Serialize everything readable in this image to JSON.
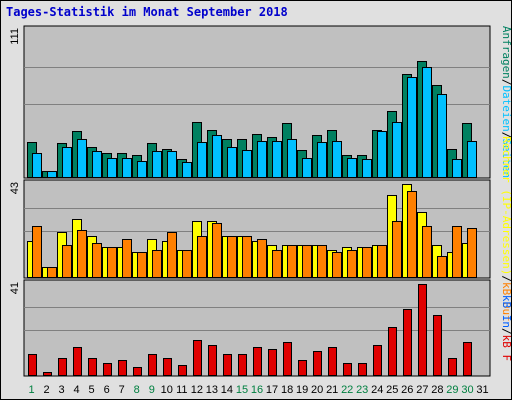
{
  "chart_data": {
    "type": "bar",
    "title": "Tages-Statistik im Monat September 2018",
    "categories": [
      "1",
      "2",
      "3",
      "4",
      "5",
      "6",
      "7",
      "8",
      "9",
      "10",
      "11",
      "12",
      "13",
      "14",
      "15",
      "16",
      "17",
      "18",
      "19",
      "20",
      "21",
      "22",
      "23",
      "24",
      "25",
      "26",
      "27",
      "28",
      "29",
      "30",
      "31"
    ],
    "weekend_days": [
      "1",
      "8",
      "9",
      "15",
      "16",
      "22",
      "23",
      "29",
      "30"
    ],
    "colors": {
      "title": "#0000cc",
      "day_label": "#000000",
      "weekend_label": "#008040",
      "plot_bg": "#c0c0c0",
      "gridline": "#808080",
      "anfragen": "#008060",
      "dateien": "#00c0ff",
      "seiten": "#00c0ff",
      "rechner": "#ffff00",
      "kb_out": "#ff8000",
      "kb_in": "#ff8000",
      "kb_f": "#e00000"
    },
    "panels": [
      {
        "ymax_label": "111",
        "ymax": 111,
        "legend": [
          {
            "text": "Anfragen",
            "color": "#008060"
          },
          {
            "text": "/",
            "color": "#000000"
          },
          {
            "text": "Dateien",
            "color": "#00c0ff"
          },
          {
            "text": "/",
            "color": "#000000"
          },
          {
            "text": "Seiten",
            "color": "#00c0ff"
          }
        ],
        "series": [
          {
            "name": "Anfragen",
            "color": "#008060",
            "values": [
              27,
              5,
              26,
              35,
              23,
              19,
              19,
              17,
              26,
              22,
              14,
              42,
              36,
              29,
              29,
              33,
              31,
              41,
              21,
              32,
              36,
              17,
              17,
              36,
              50,
              78,
              88,
              70,
              22,
              41,
              0
            ]
          },
          {
            "name": "Dateien",
            "color": "#00c0ff",
            "values": [
              19,
              5,
              23,
              29,
              20,
              15,
              15,
              13,
              20,
              20,
              12,
              27,
              32,
              23,
              21,
              28,
              28,
              29,
              15,
              27,
              28,
              15,
              14,
              35,
              42,
              76,
              83,
              63,
              14,
              28,
              0
            ]
          }
        ]
      },
      {
        "ymax_label": "43",
        "ymax": 43,
        "legend": [
          {
            "text": "Rechner (IP-Adressen)",
            "color": "#ffff00"
          },
          {
            "text": "/",
            "color": "#000000"
          },
          {
            "text": "kB Out",
            "color": "#ff8000"
          }
        ],
        "series": [
          {
            "name": "Rechner (IP-Adressen)",
            "color": "#ffff00",
            "values": [
              17,
              5,
              21,
              27,
              19,
              14,
              14,
              12,
              18,
              17,
              13,
              26,
              26,
              19,
              19,
              17,
              15,
              15,
              15,
              15,
              13,
              14,
              14,
              15,
              38,
              43,
              30,
              15,
              12,
              16,
              0
            ]
          },
          {
            "name": "kB Out",
            "color": "#ff8000",
            "values": [
              24,
              5,
              15,
              22,
              16,
              14,
              18,
              12,
              13,
              21,
              13,
              19,
              25,
              19,
              19,
              18,
              13,
              15,
              15,
              15,
              12,
              13,
              14,
              15,
              26,
              40,
              24,
              10,
              24,
              23,
              0
            ]
          }
        ]
      },
      {
        "ymax_label": "41",
        "ymax": 41,
        "legend": [
          {
            "text": "kB In",
            "color": "#0060ff"
          },
          {
            "text": "/",
            "color": "#000000"
          },
          {
            "text": "kB F",
            "color": "#e00000"
          }
        ],
        "series": [
          {
            "name": "kB F",
            "color": "#e00000",
            "values": [
              10,
              2,
              8,
              13,
              8,
              6,
              7,
              4,
              10,
              8,
              5,
              16,
              14,
              10,
              10,
              13,
              12,
              15,
              7,
              11,
              13,
              6,
              6,
              14,
              22,
              30,
              41,
              27,
              8,
              15,
              0
            ]
          }
        ]
      }
    ]
  }
}
